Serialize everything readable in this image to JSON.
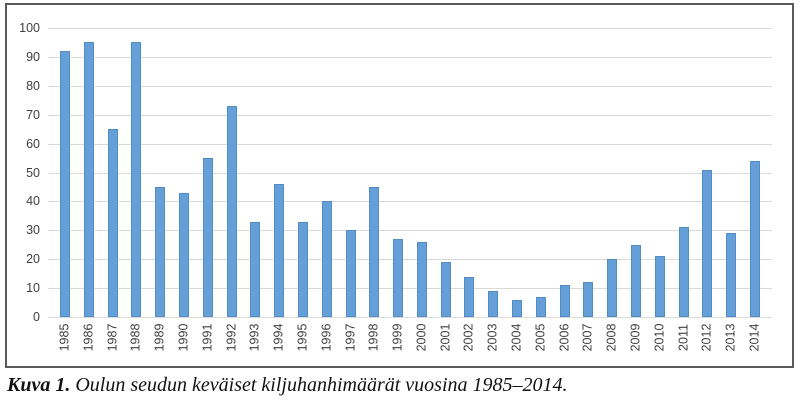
{
  "caption": {
    "label": "Kuva 1.",
    "text": " Oulun seudun keväiset kiljuhanhimäärät vuosina 1985–2014."
  },
  "chart_data": {
    "type": "bar",
    "title": "",
    "xlabel": "",
    "ylabel": "",
    "categories": [
      "1985",
      "1986",
      "1987",
      "1988",
      "1989",
      "1990",
      "1991",
      "1992",
      "1993",
      "1994",
      "1995",
      "1996",
      "1997",
      "1998",
      "1999",
      "2000",
      "2001",
      "2002",
      "2003",
      "2004",
      "2005",
      "2006",
      "2007",
      "2008",
      "2009",
      "2010",
      "2011",
      "2012",
      "2013",
      "2014"
    ],
    "values": [
      92,
      95,
      65,
      95,
      45,
      43,
      55,
      73,
      33,
      46,
      33,
      40,
      30,
      45,
      27,
      26,
      19,
      14,
      9,
      6,
      7,
      11,
      12,
      20,
      25,
      21,
      31,
      51,
      29,
      54
    ],
    "ylim": [
      0,
      100
    ],
    "ytick_step": 10,
    "grid": true,
    "legend": "none",
    "colors": {
      "bar_fill": "#64A0D7",
      "gridline": "#D9D9D9",
      "tick_label": "#404040",
      "frame_border": "#595959"
    }
  }
}
